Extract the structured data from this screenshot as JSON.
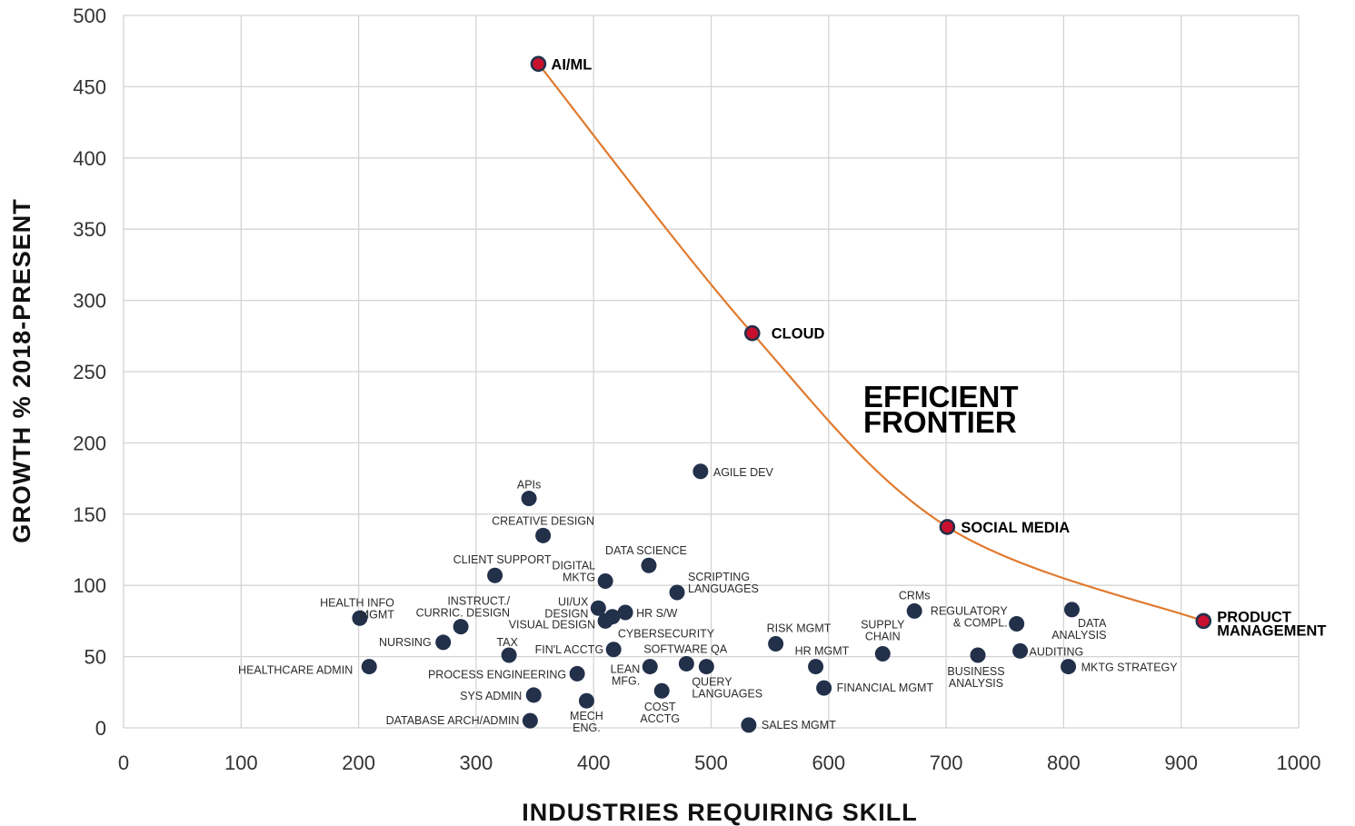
{
  "chart_data": {
    "type": "scatter",
    "xlabel": "INDUSTRIES REQUIRING SKILL",
    "ylabel": "GROWTH % 2018-PRESENT",
    "xlim": [
      0,
      1000
    ],
    "ylim": [
      0,
      500
    ],
    "xticks": [
      "0",
      "100",
      "200",
      "300",
      "400",
      "500",
      "600",
      "700",
      "800",
      "900",
      "1000"
    ],
    "yticks": [
      "0",
      "50",
      "100",
      "150",
      "200",
      "250",
      "300",
      "350",
      "400",
      "450",
      "500"
    ],
    "grid": true,
    "annotation": [
      "EFFICIENT",
      "FRONTIER"
    ],
    "colors": {
      "point": "#22304a",
      "frontier_point": "#c8102e",
      "frontier_line": "#e07a2f",
      "grid": "#d4d4d4"
    },
    "points": [
      {
        "name": [
          "APIs"
        ],
        "x": 345,
        "y": 161
      },
      {
        "name": [
          "CREATIVE DESIGN"
        ],
        "x": 357,
        "y": 135
      },
      {
        "name": [
          "CLIENT SUPPORT"
        ],
        "x": 316,
        "y": 107
      },
      {
        "name": [
          "DATA SCIENCE"
        ],
        "x": 447,
        "y": 114
      },
      {
        "name": [
          "DIGITAL",
          "MKTG"
        ],
        "x": 410,
        "y": 103
      },
      {
        "name": [
          "SCRIPTING",
          "LANGUAGES"
        ],
        "x": 471,
        "y": 95
      },
      {
        "name": [
          "AGILE DEV"
        ],
        "x": 491,
        "y": 180
      },
      {
        "name": [
          "HEALTH INFO",
          "MGMT"
        ],
        "x": 201,
        "y": 77
      },
      {
        "name": [
          "INSTRUCT./",
          "CURRIC. DESIGN"
        ],
        "x": 287,
        "y": 71
      },
      {
        "name": [
          "UI/UX",
          "DESIGN"
        ],
        "x": 404,
        "y": 84
      },
      {
        "name": [
          "HR S/W"
        ],
        "x": 427,
        "y": 81
      },
      {
        "name": [
          "VISUAL DESIGN"
        ],
        "x": 410,
        "y": 75
      },
      {
        "name": [
          "CYBERSECURITY"
        ],
        "x": 416,
        "y": 78
      },
      {
        "name": [
          "NURSING"
        ],
        "x": 272,
        "y": 60
      },
      {
        "name": [
          "TAX"
        ],
        "x": 328,
        "y": 51
      },
      {
        "name": [
          "FIN'L ACCTG"
        ],
        "x": 417,
        "y": 55
      },
      {
        "name": [
          "SOFTWARE QA"
        ],
        "x": 479,
        "y": 45
      },
      {
        "name": [
          "HEALTHCARE ADMIN"
        ],
        "x": 209,
        "y": 43
      },
      {
        "name": [
          "PROCESS ENGINEERING"
        ],
        "x": 386,
        "y": 38
      },
      {
        "name": [
          "LEAN",
          "MFG."
        ],
        "x": 448,
        "y": 43
      },
      {
        "name": [
          "QUERY",
          "LANGUAGES"
        ],
        "x": 496,
        "y": 43
      },
      {
        "name": [
          "SYS ADMIN"
        ],
        "x": 349,
        "y": 23
      },
      {
        "name": [
          "COST",
          "ACCTG"
        ],
        "x": 458,
        "y": 26
      },
      {
        "name": [
          "MECH",
          "ENG."
        ],
        "x": 394,
        "y": 19
      },
      {
        "name": [
          "DATABASE ARCH/ADMIN"
        ],
        "x": 346,
        "y": 5
      },
      {
        "name": [
          "SALES MGMT"
        ],
        "x": 532,
        "y": 2
      },
      {
        "name": [
          "RISK MGMT"
        ],
        "x": 555,
        "y": 59
      },
      {
        "name": [
          "HR MGMT"
        ],
        "x": 589,
        "y": 43
      },
      {
        "name": [
          "FINANCIAL MGMT"
        ],
        "x": 596,
        "y": 28
      },
      {
        "name": [
          "SUPPLY",
          "CHAIN"
        ],
        "x": 646,
        "y": 52
      },
      {
        "name": [
          "CRMs"
        ],
        "x": 673,
        "y": 82
      },
      {
        "name": [
          "BUSINESS",
          "ANALYSIS"
        ],
        "x": 727,
        "y": 51
      },
      {
        "name": [
          "REGULATORY",
          "& COMPL."
        ],
        "x": 760,
        "y": 73
      },
      {
        "name": [
          "AUDITING"
        ],
        "x": 763,
        "y": 54
      },
      {
        "name": [
          "DATA",
          "ANALYSIS"
        ],
        "x": 807,
        "y": 83
      },
      {
        "name": [
          "MKTG STRATEGY"
        ],
        "x": 804,
        "y": 43
      }
    ],
    "frontier": [
      {
        "name": [
          "AI/ML"
        ],
        "x": 353,
        "y": 466
      },
      {
        "name": [
          "CLOUD"
        ],
        "x": 535,
        "y": 277
      },
      {
        "name": [
          "SOCIAL MEDIA"
        ],
        "x": 701,
        "y": 141
      },
      {
        "name": [
          "PRODUCT",
          "MANAGEMENT"
        ],
        "x": 919,
        "y": 75
      }
    ]
  }
}
